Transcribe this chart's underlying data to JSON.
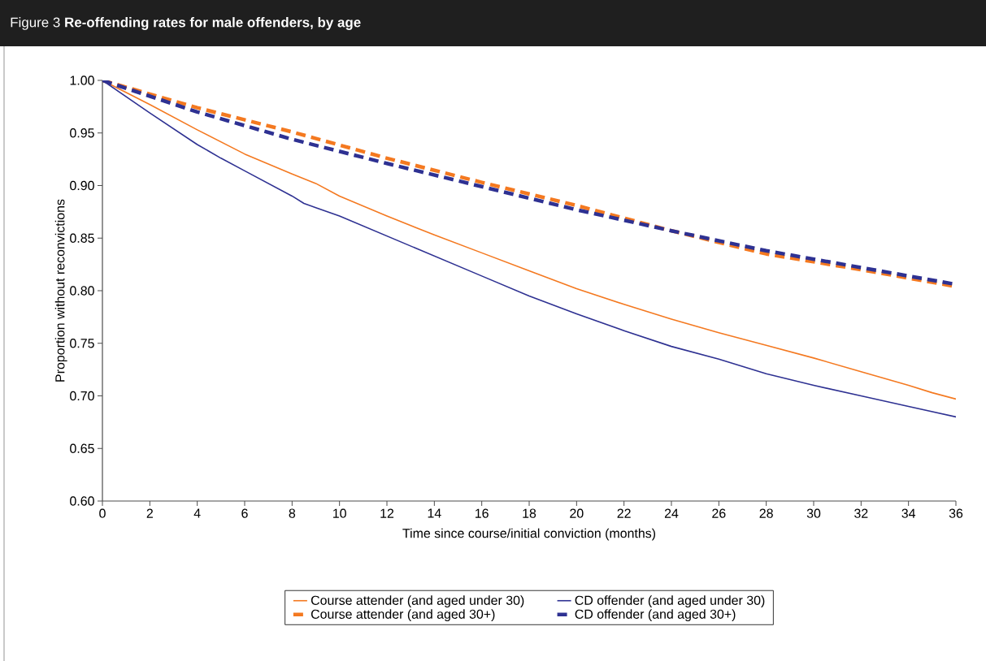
{
  "chart_data": {
    "type": "line",
    "title": "Figure 3  **Re-offending rates for male offenders, by age**",
    "xlabel": "Time since course/initial conviction (months)",
    "ylabel": "Proportion without reconvictions",
    "xlim": [
      0,
      36
    ],
    "xticks": [
      0,
      2,
      4,
      6,
      8,
      10,
      12,
      14,
      16,
      18,
      20,
      22,
      24,
      26,
      28,
      30,
      32,
      34,
      36
    ],
    "ylim": [
      0.6,
      1.0
    ],
    "yticks": [
      {
        "value": 0.6,
        "label": "0.60"
      },
      {
        "value": 0.65,
        "label": "0.65"
      },
      {
        "value": 0.7,
        "label": "0.70"
      },
      {
        "value": 0.75,
        "label": "0.75"
      },
      {
        "value": 0.8,
        "label": "0.80"
      },
      {
        "value": 0.85,
        "label": "0.85"
      },
      {
        "value": 0.9,
        "label": "0.90"
      },
      {
        "value": 0.95,
        "label": "0.95"
      },
      {
        "value": 1.0,
        "label": "1.00"
      }
    ],
    "grid": false,
    "legend": "bottom",
    "series": [
      {
        "name": "Course attender (and aged under 30)",
        "color": "#f47920",
        "line_style": "solid",
        "x": [
          0,
          2,
          4,
          6,
          8,
          9,
          10,
          12,
          14,
          16,
          18,
          20,
          22,
          24,
          26,
          28,
          30,
          32,
          34,
          35,
          36
        ],
        "values": [
          1.0,
          0.977,
          0.953,
          0.93,
          0.911,
          0.902,
          0.89,
          0.871,
          0.853,
          0.836,
          0.819,
          0.802,
          0.787,
          0.773,
          0.76,
          0.748,
          0.736,
          0.723,
          0.71,
          0.703,
          0.697
        ]
      },
      {
        "name": "CD offender (and aged under 30)",
        "color": "#2e3192",
        "line_style": "solid",
        "x": [
          0,
          2,
          4,
          5,
          6,
          8,
          8.5,
          9,
          10,
          12,
          14,
          16,
          18,
          20,
          22,
          24,
          26,
          28,
          30,
          32,
          34,
          36
        ],
        "values": [
          1.0,
          0.969,
          0.939,
          0.926,
          0.914,
          0.89,
          0.883,
          0.879,
          0.871,
          0.852,
          0.833,
          0.814,
          0.795,
          0.778,
          0.762,
          0.747,
          0.735,
          0.721,
          0.71,
          0.7,
          0.69,
          0.68
        ]
      },
      {
        "name": "Course attender (and aged 30+)",
        "color": "#f47920",
        "line_style": "dashed",
        "x": [
          0,
          4,
          8,
          12,
          16,
          20,
          24,
          28,
          32,
          36
        ],
        "values": [
          1.0,
          0.974,
          0.951,
          0.926,
          0.903,
          0.881,
          0.857,
          0.835,
          0.82,
          0.804
        ]
      },
      {
        "name": "CD offender (and aged 30+)",
        "color": "#2e3192",
        "line_style": "dashed",
        "x": [
          0,
          4,
          8,
          12,
          16,
          20,
          24,
          28,
          32,
          36
        ],
        "values": [
          1.0,
          0.97,
          0.944,
          0.921,
          0.899,
          0.877,
          0.857,
          0.838,
          0.822,
          0.806
        ]
      }
    ]
  }
}
